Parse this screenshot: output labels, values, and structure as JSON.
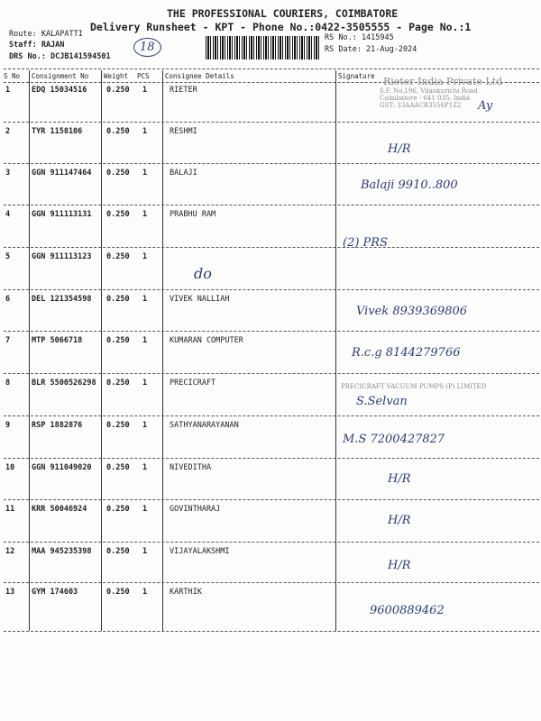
{
  "header": {
    "company": "THE PROFESSIONAL COURIERS, COIMBATORE",
    "subtitle": "Delivery Runsheet - KPT - Phone No.:0422-3505555 - Page No.:1",
    "route": "Route: KALAPATTI",
    "staff": "Staff: RAJAN",
    "drs": "DRS No.: DCJB141594501",
    "rs_no": "RS No.: 1415945",
    "rs_date": "RS Date: 21-Aug-2024",
    "circled_note": "18"
  },
  "columns": [
    "S No",
    "Consignment No",
    "Weight",
    "PCS",
    "Consignee Details",
    "Signature"
  ],
  "rows": [
    {
      "sno": "1",
      "cno": "EDQ 15034516",
      "weight": "0.250",
      "pcs": "1",
      "consignee": "RIETER",
      "note": "",
      "sig": "Ay"
    },
    {
      "sno": "2",
      "cno": "TYR 1158106",
      "weight": "0.250",
      "pcs": "1",
      "consignee": "RESHMI",
      "note": "",
      "sig": "H/R"
    },
    {
      "sno": "3",
      "cno": "GGN 911147464",
      "weight": "0.250",
      "pcs": "1",
      "consignee": "BALAJI",
      "note": "",
      "sig": "Balaji 9910..800"
    },
    {
      "sno": "4",
      "cno": "GGN 911113131",
      "weight": "0.250",
      "pcs": "1",
      "consignee": "PRABHU RAM",
      "note": "",
      "sig": "(2) PRS"
    },
    {
      "sno": "5",
      "cno": "GGN 911113123",
      "weight": "0.250",
      "pcs": "1",
      "consignee": "",
      "note": "do",
      "sig": ""
    },
    {
      "sno": "6",
      "cno": "DEL 121354598",
      "weight": "0.250",
      "pcs": "1",
      "consignee": "VIVEK NALLIAH",
      "note": "",
      "sig": "Vivek 8939369806"
    },
    {
      "sno": "7",
      "cno": "MTP 5066718",
      "weight": "0.250",
      "pcs": "1",
      "consignee": "KUMARAN COMPUTER",
      "note": "",
      "sig": "R.c.g 8144279766"
    },
    {
      "sno": "8",
      "cno": "BLR 5500526298",
      "weight": "0.250",
      "pcs": "1",
      "consignee": "PRECICRAFT",
      "note": "",
      "sig": "S.Selvan"
    },
    {
      "sno": "9",
      "cno": "RSP 1882876",
      "weight": "0.250",
      "pcs": "1",
      "consignee": "SATHYANARAYANAN",
      "note": "",
      "sig": "M.S 7200427827"
    },
    {
      "sno": "10",
      "cno": "GGN 911049020",
      "weight": "0.250",
      "pcs": "1",
      "consignee": "NIVEDITHA",
      "note": "",
      "sig": "H/R"
    },
    {
      "sno": "11",
      "cno": "KRR 50046924",
      "weight": "0.250",
      "pcs": "1",
      "consignee": "GOVINTHARAJ",
      "note": "",
      "sig": "H/R"
    },
    {
      "sno": "12",
      "cno": "MAA 945235398",
      "weight": "0.250",
      "pcs": "1",
      "consignee": "VIJAYALAKSHMI",
      "note": "",
      "sig": "H/R"
    },
    {
      "sno": "13",
      "cno": "GYM 174603",
      "weight": "0.250",
      "pcs": "1",
      "consignee": "KARTHIK",
      "note": "",
      "sig": "9600889462"
    }
  ],
  "stamps": {
    "rieter": [
      "Rieter India Private Ltd",
      "S.F. No.196, Vilankurichi Road",
      "Coimbatore - 641 035, India",
      "GST: 33AAACR3556P1Z2"
    ],
    "precicraft": "PRECICRAFT VACUUM PUMPS (P) LIMITED"
  }
}
